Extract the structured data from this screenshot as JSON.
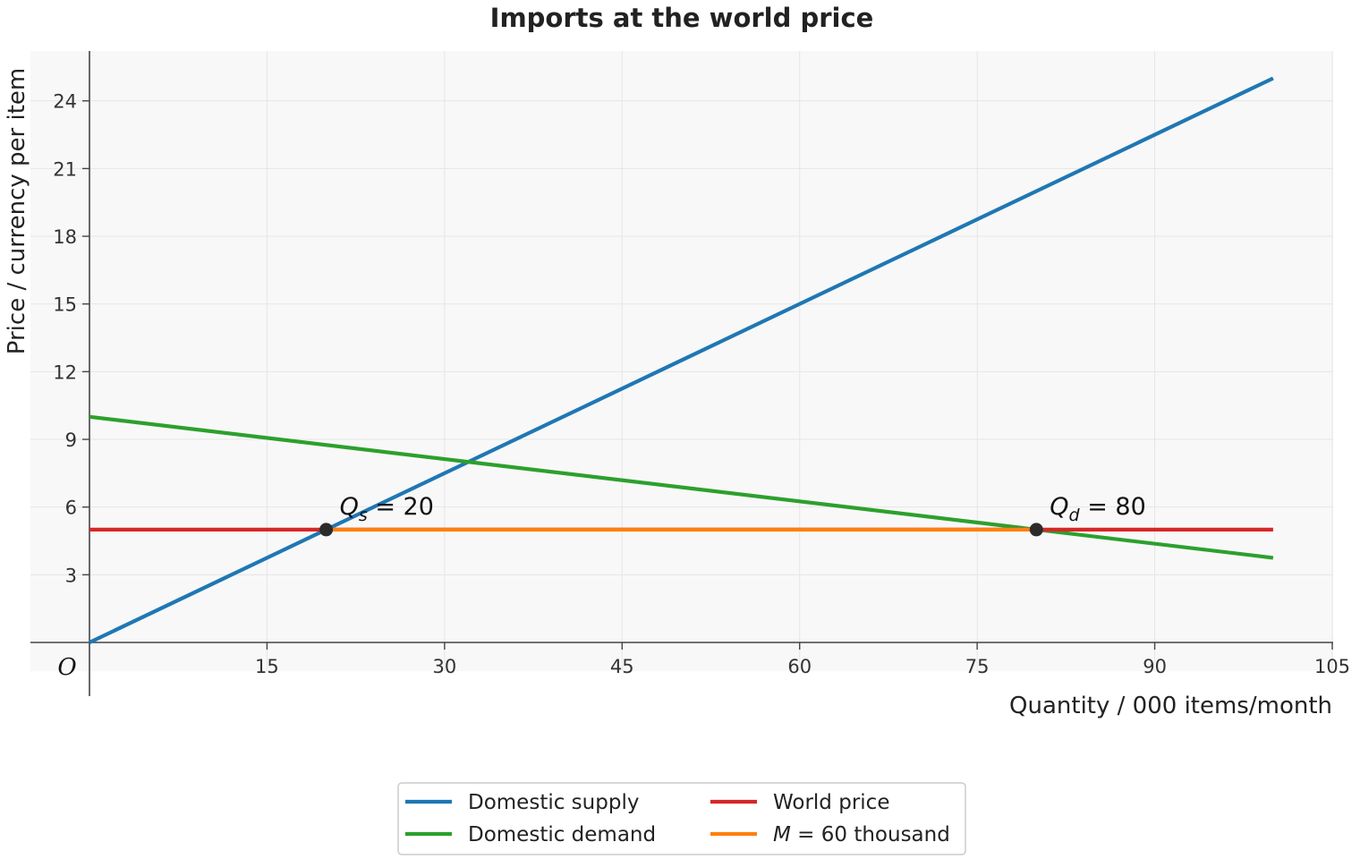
{
  "chart_data": {
    "type": "line",
    "title": "Imports at the world price",
    "xlabel": "Quantity / 000 items/month",
    "ylabel": "Price / currency per item",
    "origin_label": "O",
    "xlim": [
      0,
      105
    ],
    "ylim": [
      -2.5,
      26.2
    ],
    "xticks": [
      15,
      30,
      45,
      60,
      75,
      90,
      105
    ],
    "yticks": [
      3,
      6,
      9,
      12,
      15,
      18,
      21,
      24
    ],
    "grid": true,
    "legend": {
      "placement": "bottom-center",
      "columns": 2
    },
    "series": [
      {
        "name": "Domestic supply",
        "color": "#1f77b4",
        "points": [
          [
            0,
            0
          ],
          [
            100,
            25
          ]
        ]
      },
      {
        "name": "Domestic demand",
        "color": "#2ca02c",
        "points": [
          [
            0,
            10
          ],
          [
            100,
            3.75
          ]
        ]
      },
      {
        "name": "World price",
        "color": "#d62728",
        "points": [
          [
            0,
            5
          ],
          [
            100,
            5
          ]
        ]
      },
      {
        "name": "M = 60 thousand",
        "name_var": "M",
        "name_rest": " = 60 thousand",
        "color": "#ff7f0e",
        "points": [
          [
            20,
            5
          ],
          [
            80,
            5
          ]
        ]
      }
    ],
    "markers": [
      {
        "x": 20,
        "y": 5,
        "label_var": "Q",
        "label_sub": "s",
        "label_rest": " = 20"
      },
      {
        "x": 80,
        "y": 5,
        "label_var": "Q",
        "label_sub": "d",
        "label_rest": " = 80"
      }
    ]
  }
}
